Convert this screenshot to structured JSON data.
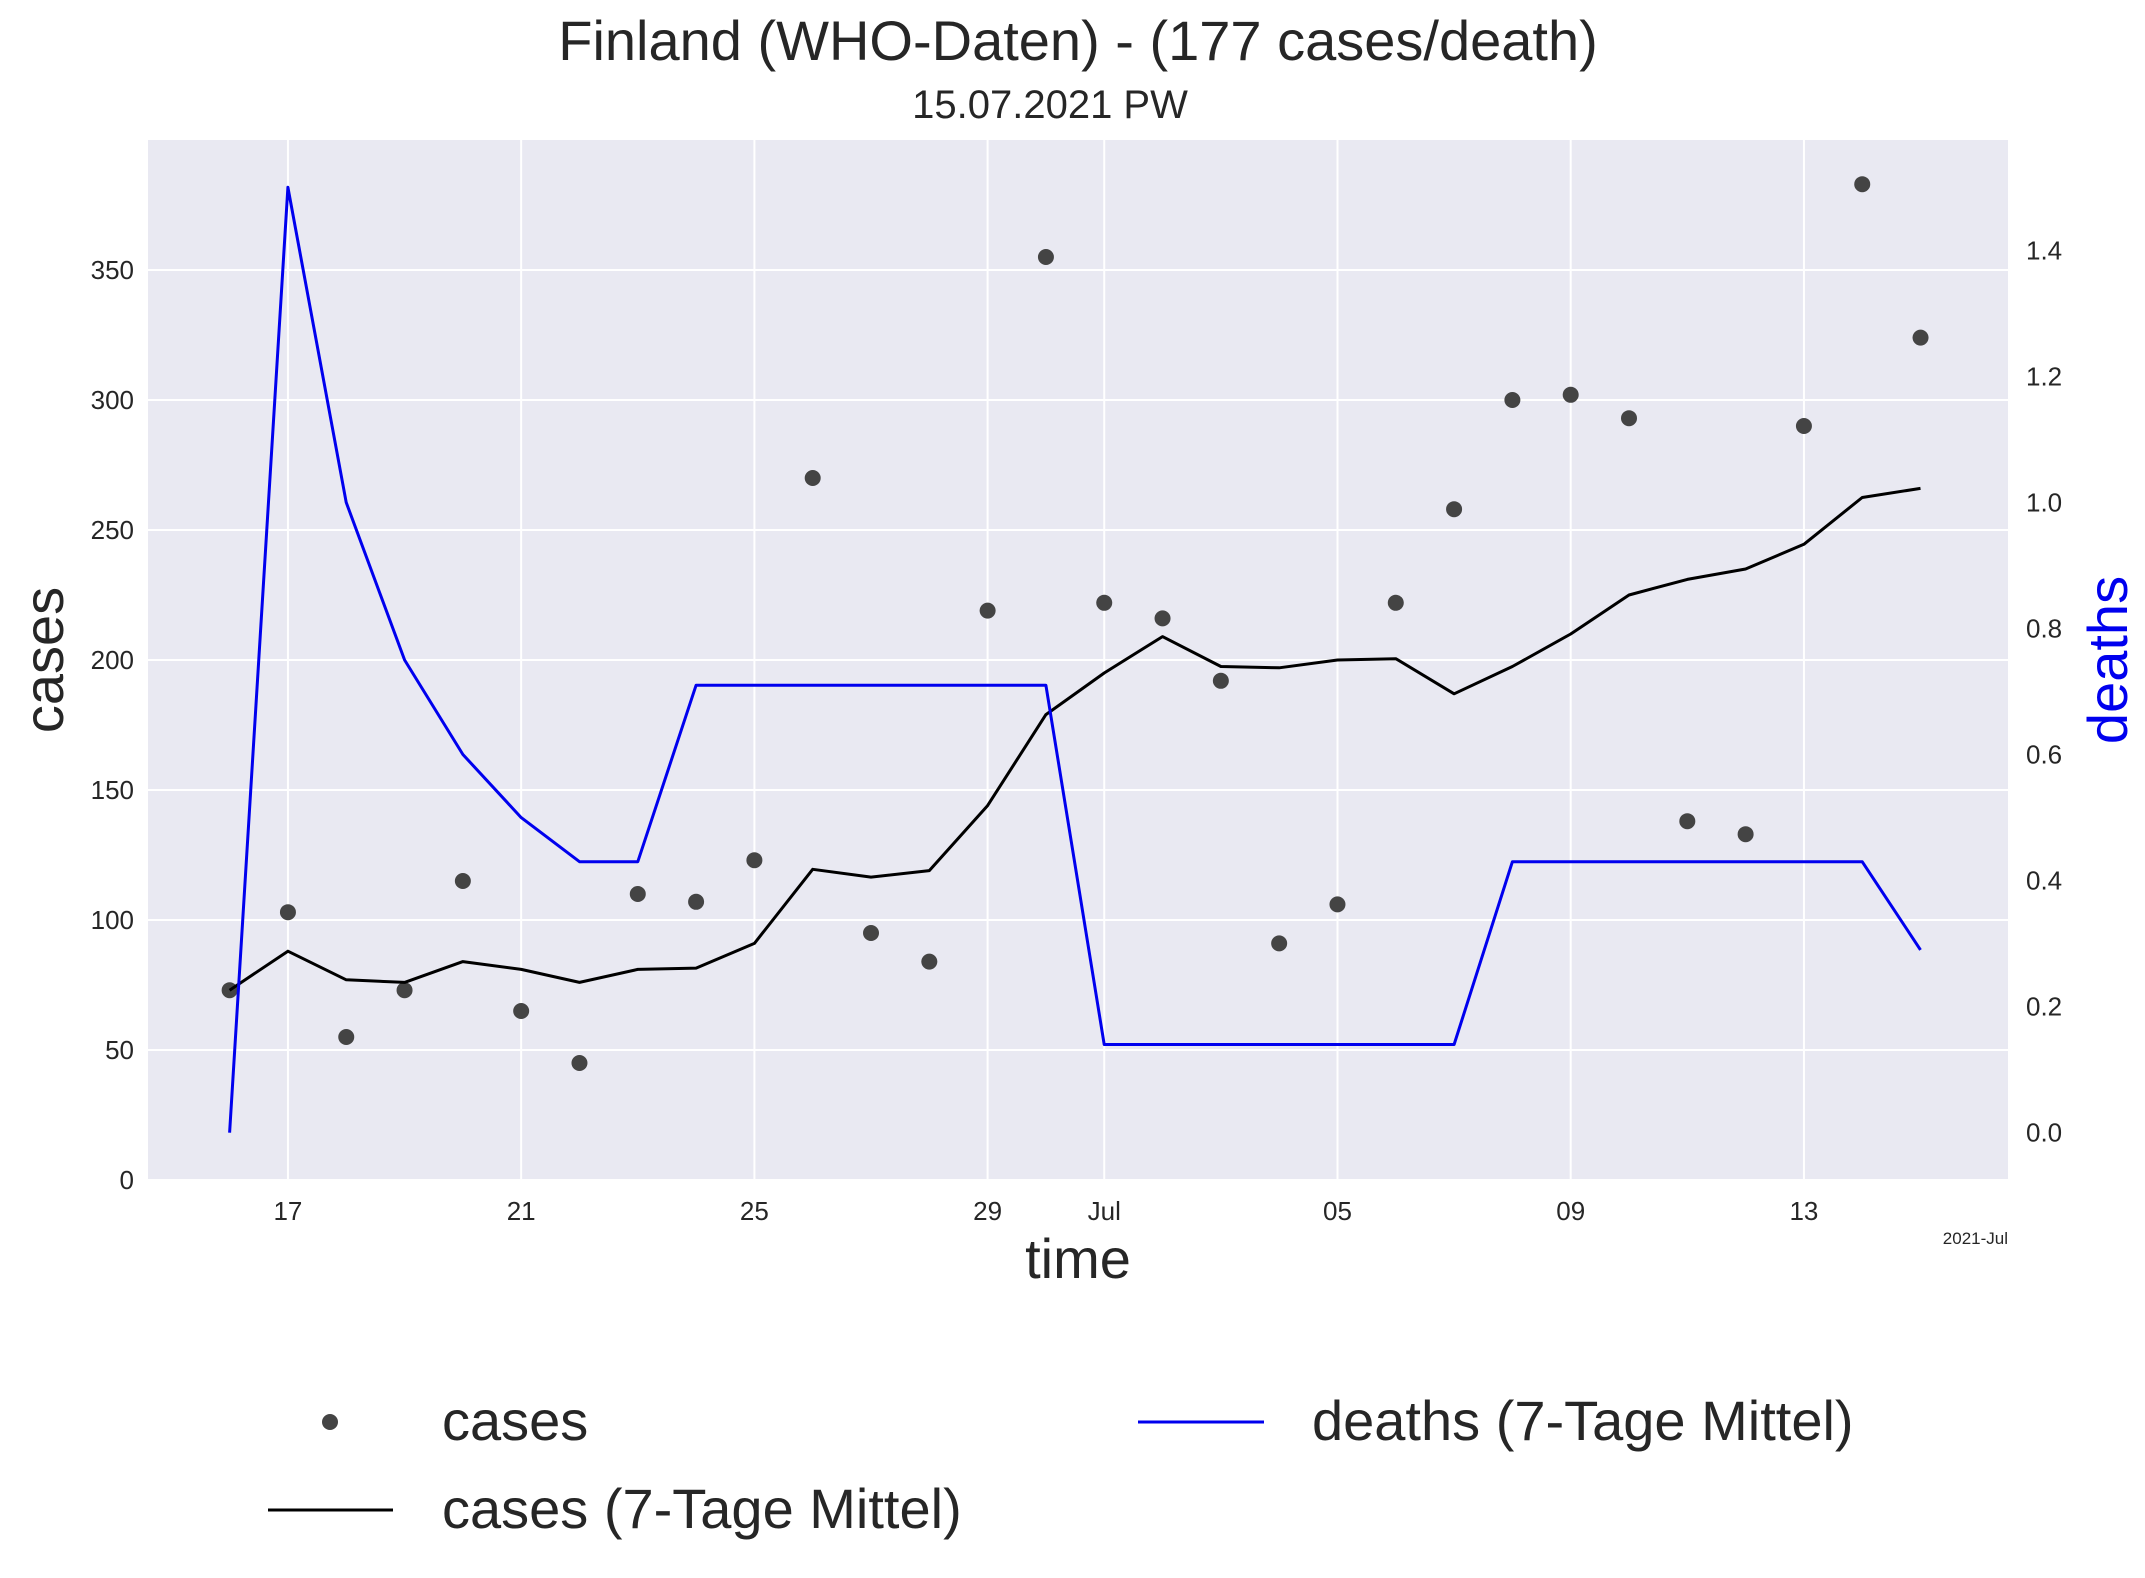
{
  "chart_data": {
    "type": "line",
    "title": "Finland (WHO-Daten) - (177 cases/death)",
    "subtitle": "15.07.2021 PW",
    "xlabel": "time",
    "ylabel_left": "cases",
    "ylabel_right": "deaths",
    "x_offset_label": "2021-Jul",
    "x": [
      "2021-06-16",
      "2021-06-17",
      "2021-06-18",
      "2021-06-19",
      "2021-06-20",
      "2021-06-21",
      "2021-06-22",
      "2021-06-23",
      "2021-06-24",
      "2021-06-25",
      "2021-06-26",
      "2021-06-27",
      "2021-06-28",
      "2021-06-29",
      "2021-06-30",
      "2021-07-01",
      "2021-07-02",
      "2021-07-03",
      "2021-07-04",
      "2021-07-05",
      "2021-07-06",
      "2021-07-07",
      "2021-07-08",
      "2021-07-09",
      "2021-07-10",
      "2021-07-11",
      "2021-07-12",
      "2021-07-13",
      "2021-07-14",
      "2021-07-15"
    ],
    "xlim": [
      "2021-06-14.6",
      "2021-07-16.5"
    ],
    "x_ticks": [
      {
        "date": "2021-06-17",
        "label": "17"
      },
      {
        "date": "2021-06-21",
        "label": "21"
      },
      {
        "date": "2021-06-25",
        "label": "25"
      },
      {
        "date": "2021-06-29",
        "label": "29"
      },
      {
        "date": "2021-07-01",
        "label": "Jul"
      },
      {
        "date": "2021-07-05",
        "label": "05"
      },
      {
        "date": "2021-07-09",
        "label": "09"
      },
      {
        "date": "2021-07-13",
        "label": "13"
      }
    ],
    "ylim_left": [
      0,
      400
    ],
    "y_ticks_left": [
      0,
      50,
      100,
      150,
      200,
      250,
      300,
      350
    ],
    "ylim_right": [
      -0.075,
      1.575
    ],
    "y_ticks_right": [
      0.0,
      0.2,
      0.4,
      0.6,
      0.8,
      1.0,
      1.2,
      1.4
    ],
    "grid": true,
    "legend_position": "bottom",
    "series": [
      {
        "name": "cases",
        "kind": "scatter",
        "axis": "left",
        "color": "#444444",
        "values": [
          73,
          103,
          55,
          73,
          115,
          65,
          45,
          110,
          107,
          123,
          270,
          95,
          84,
          219,
          355,
          222,
          216,
          192,
          91,
          106,
          222,
          258,
          300,
          302,
          293,
          138,
          133,
          290,
          383,
          324
        ]
      },
      {
        "name": "cases (7-Tage Mittel)",
        "kind": "line",
        "axis": "left",
        "color": "#000000",
        "values": [
          73,
          88,
          77,
          76,
          84,
          81,
          76,
          81,
          81.5,
          91,
          119.5,
          116.5,
          119,
          144,
          179,
          195,
          209,
          197.5,
          197,
          200,
          200.5,
          187,
          197.5,
          210,
          225,
          231,
          235,
          244.5,
          262.5,
          266
        ]
      },
      {
        "name": "deaths (7-Tage Mittel)",
        "kind": "line",
        "axis": "right",
        "color": "#0000ee",
        "values": [
          0.0,
          1.5,
          1.0,
          0.75,
          0.6,
          0.5,
          0.43,
          0.43,
          0.71,
          0.71,
          0.71,
          0.71,
          0.71,
          0.71,
          0.71,
          0.14,
          0.14,
          0.14,
          0.14,
          0.14,
          0.14,
          0.14,
          0.43,
          0.43,
          0.43,
          0.43,
          0.43,
          0.43,
          0.43,
          0.29
        ]
      }
    ]
  },
  "colors": {
    "plot_background": "#e9e9f2",
    "grid": "#ffffff",
    "text": "#262626",
    "deaths_label": "#0000ee"
  }
}
